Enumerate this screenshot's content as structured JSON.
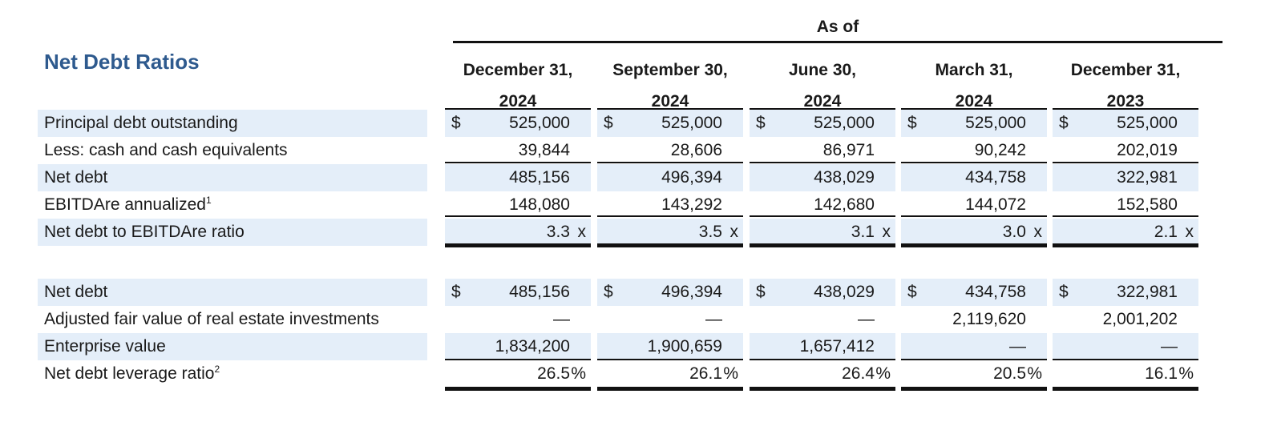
{
  "title": "Net Debt Ratios",
  "as_of": "As of",
  "columns": [
    {
      "line1": "December 31,",
      "line2": "2024"
    },
    {
      "line1": "September 30,",
      "line2": "2024"
    },
    {
      "line1": "June 30,",
      "line2": "2024"
    },
    {
      "line1": "March 31,",
      "line2": "2024"
    },
    {
      "line1": "December 31,",
      "line2": "2023"
    }
  ],
  "section1": [
    {
      "label": "Principal debt outstanding",
      "sup": "",
      "dollar": "$",
      "unit": "",
      "values": [
        "525,000",
        "525,000",
        "525,000",
        "525,000",
        "525,000"
      ]
    },
    {
      "label": "Less: cash and cash equivalents",
      "sup": "",
      "dollar": "",
      "unit": "",
      "values": [
        "39,844",
        "28,606",
        "86,971",
        "90,242",
        "202,019"
      ]
    },
    {
      "label": "Net debt",
      "sup": "",
      "dollar": "",
      "unit": "",
      "values": [
        "485,156",
        "496,394",
        "438,029",
        "434,758",
        "322,981"
      ]
    },
    {
      "label": "EBITDAre annualized",
      "sup": "1",
      "dollar": "",
      "unit": "",
      "values": [
        "148,080",
        "143,292",
        "142,680",
        "144,072",
        "152,580"
      ]
    },
    {
      "label": "Net debt to EBITDAre ratio",
      "sup": "",
      "dollar": "",
      "unit": "x",
      "values": [
        "3.3",
        "3.5",
        "3.1",
        "3.0",
        "2.1"
      ]
    }
  ],
  "section2": [
    {
      "label": "Net debt",
      "sup": "",
      "dollar": "$",
      "unit": "",
      "values": [
        "485,156",
        "496,394",
        "438,029",
        "434,758",
        "322,981"
      ]
    },
    {
      "label": "Adjusted fair value of real estate investments",
      "sup": "",
      "dollar": "",
      "unit": "",
      "values": [
        "—",
        "—",
        "—",
        "2,119,620",
        "2,001,202"
      ]
    },
    {
      "label": "Enterprise value",
      "sup": "",
      "dollar": "",
      "unit": "",
      "values": [
        "1,834,200",
        "1,900,659",
        "1,657,412",
        "—",
        "—"
      ]
    },
    {
      "label": "Net debt leverage ratio",
      "sup": "2",
      "dollar": "",
      "unit": "%",
      "values": [
        "26.5",
        "26.1",
        "26.4",
        "20.5",
        "16.1"
      ]
    }
  ],
  "colors": {
    "title": "#2e5a8e",
    "shade": "#e4eef9"
  }
}
